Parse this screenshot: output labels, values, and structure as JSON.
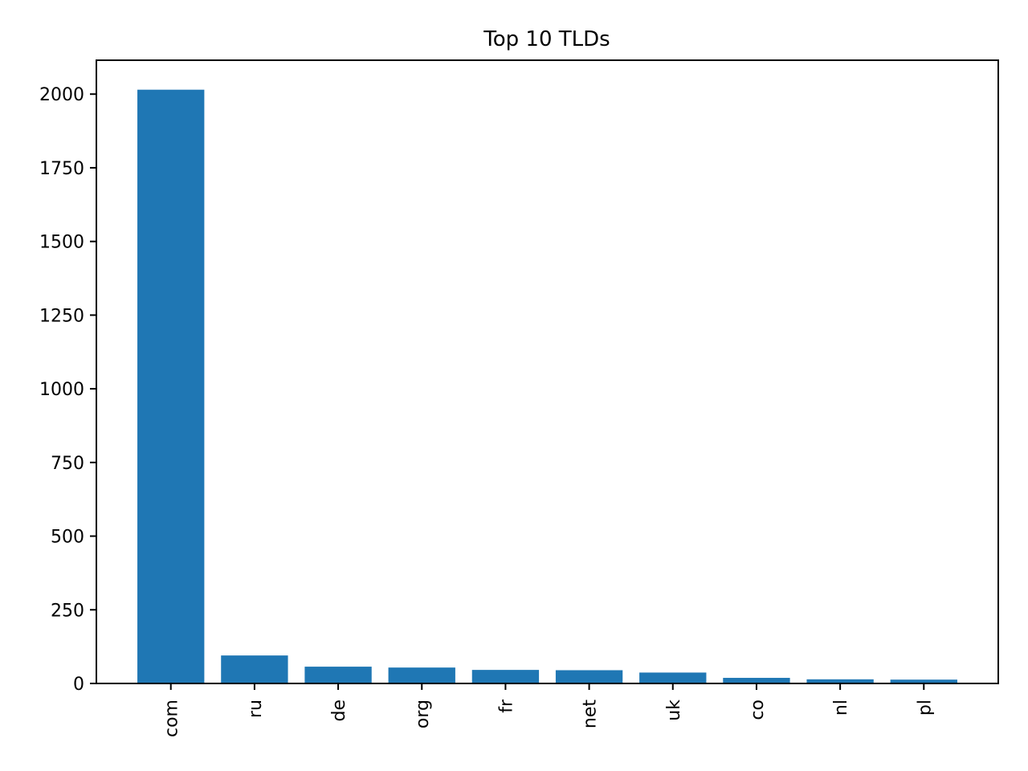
{
  "chart_data": {
    "type": "bar",
    "title": "Top 10 TLDs",
    "xlabel": "",
    "ylabel": "",
    "categories": [
      "com",
      "ru",
      "de",
      "org",
      "fr",
      "net",
      "uk",
      "co",
      "nl",
      "pl"
    ],
    "values": [
      2015,
      95,
      57,
      54,
      46,
      45,
      37,
      19,
      14,
      13
    ],
    "ylim": [
      0,
      2115
    ],
    "yticks": [
      0,
      250,
      500,
      750,
      1000,
      1250,
      1500,
      1750,
      2000
    ],
    "ytick_labels": [
      "0",
      "250",
      "500",
      "750",
      "1000",
      "1250",
      "1500",
      "1750",
      "2000"
    ],
    "grid": false,
    "legend": "none",
    "bar_color": "#1f77b4"
  }
}
